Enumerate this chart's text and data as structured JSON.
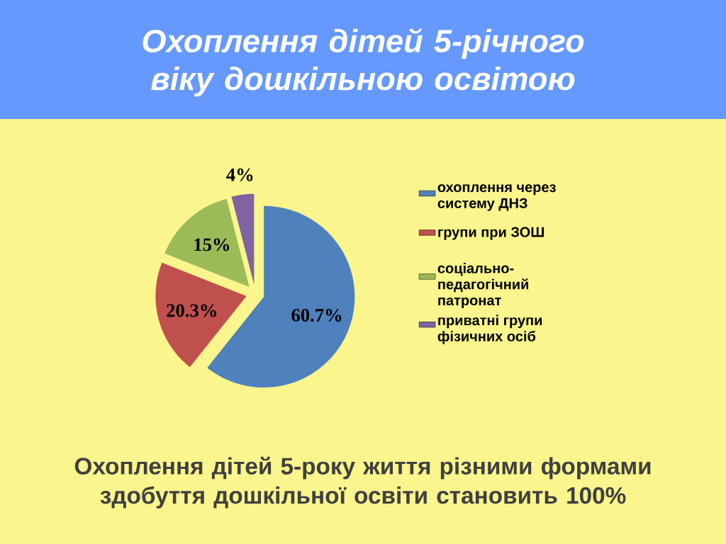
{
  "chart_data": {
    "type": "pie",
    "title": "Охоплення дітей 5-річного віку дошкільною освітою",
    "categories": [
      "охоплення через систему ДНЗ",
      "групи при ЗОШ",
      "соціально-педагогічний патронат",
      "приватні групи фізичних осіб"
    ],
    "values": [
      60.7,
      20.3,
      15,
      4
    ],
    "colors": [
      "#4f81bd",
      "#c0504d",
      "#9bbb59",
      "#8064a2"
    ],
    "value_labels": [
      "60.7%",
      "20.3%",
      "15%",
      "4%"
    ],
    "legend": "right",
    "annotations": [
      "Охоплення дітей 5-року життя різними формами здобуття дошкільної освіти становить 100%"
    ]
  }
}
